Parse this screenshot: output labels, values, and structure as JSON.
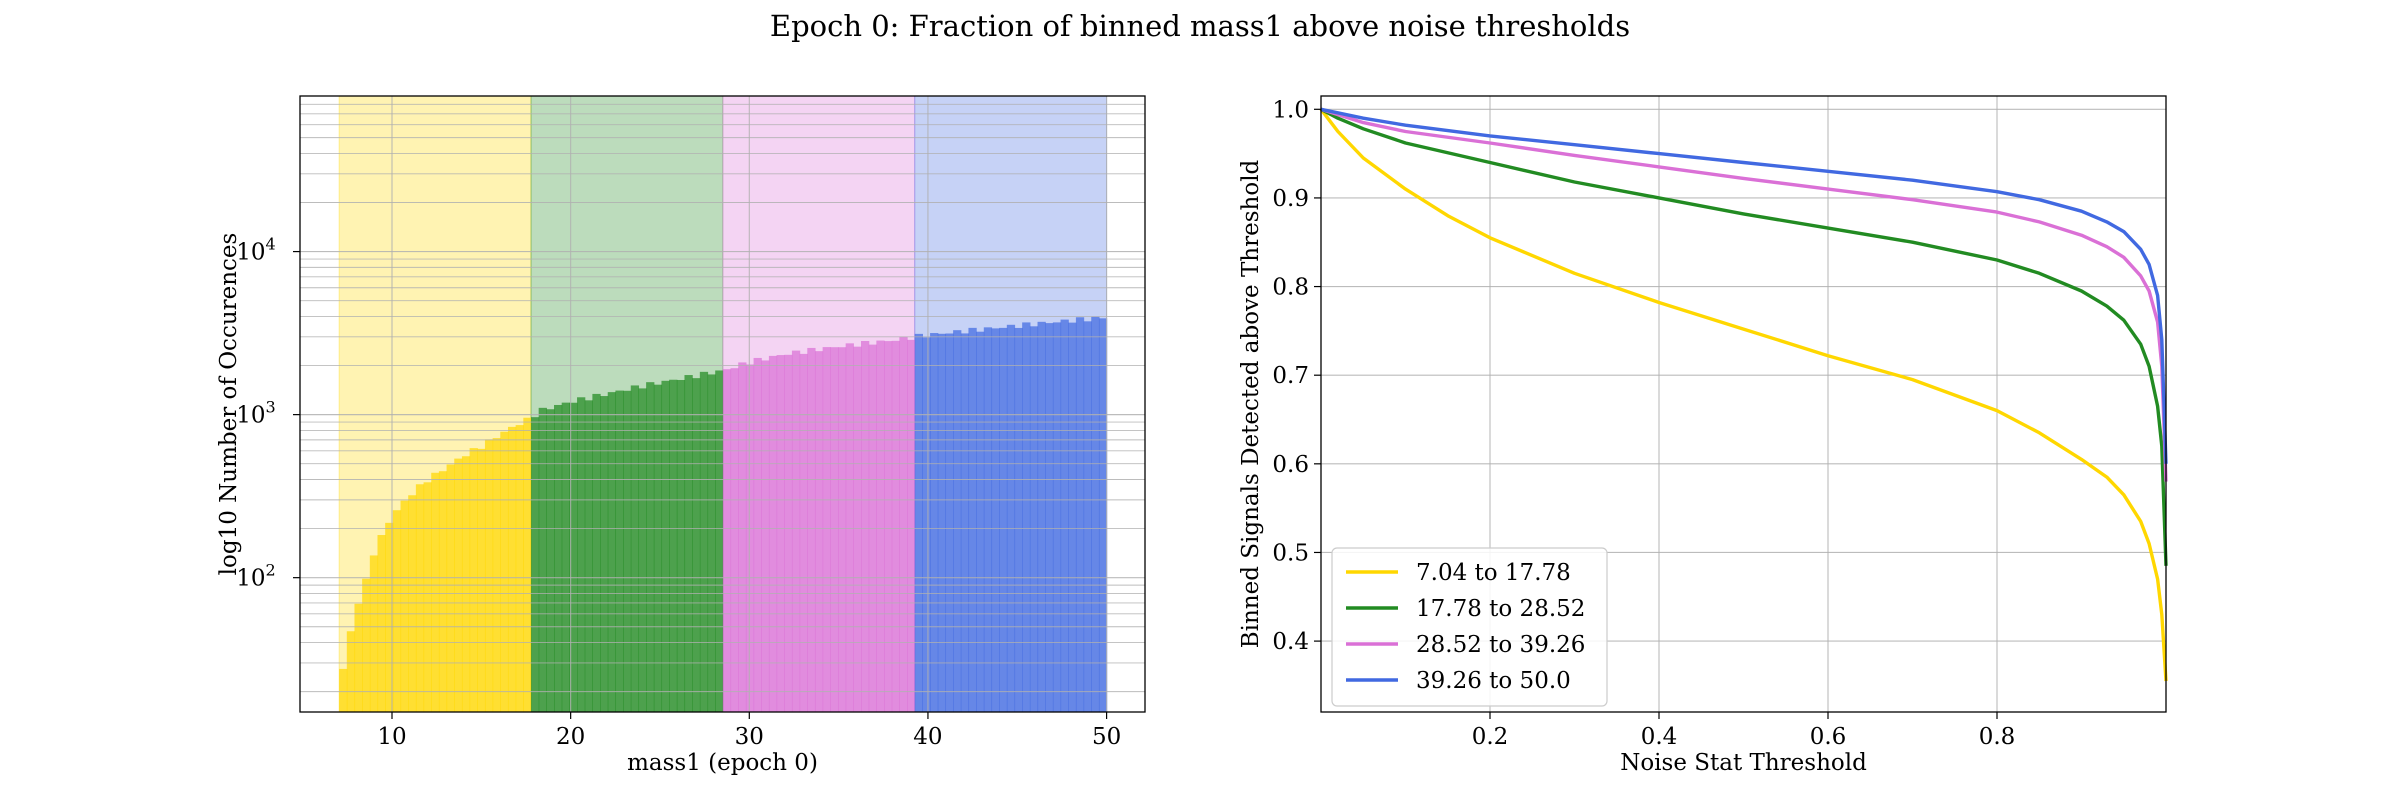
{
  "figure": {
    "suptitle": "Epoch 0: Fraction of binned mass1 above noise thresholds"
  },
  "chart_data": [
    {
      "type": "bar",
      "subtype": "histogram",
      "xlabel": "mass1 (epoch 0)",
      "ylabel": "log10 Number of Occurences",
      "xlim": [
        4.85,
        52.15
      ],
      "ylim": [
        15,
        90000
      ],
      "yscale": "log",
      "xticks": [
        10,
        20,
        30,
        40,
        50
      ],
      "yticks": [
        {
          "value": 100,
          "base": "10",
          "exp": "2"
        },
        {
          "value": 1000,
          "base": "10",
          "exp": "3"
        },
        {
          "value": 10000,
          "base": "10",
          "exp": "4"
        }
      ],
      "grid": true,
      "bin_range": [
        7.04,
        50.0
      ],
      "n_bins": 100,
      "envelope": [
        [
          7.04,
          20
        ],
        [
          7.47,
          38
        ],
        [
          7.9,
          58
        ],
        [
          8.5,
          95
        ],
        [
          9.0,
          145
        ],
        [
          10.0,
          240
        ],
        [
          11.0,
          320
        ],
        [
          12.0,
          400
        ],
        [
          13.0,
          470
        ],
        [
          14.0,
          560
        ],
        [
          15.0,
          640
        ],
        [
          16.0,
          750
        ],
        [
          17.0,
          870
        ],
        [
          17.78,
          950
        ],
        [
          18.2,
          1050
        ],
        [
          20.0,
          1200
        ],
        [
          22.0,
          1340
        ],
        [
          24.0,
          1500
        ],
        [
          26.0,
          1650
        ],
        [
          28.0,
          1820
        ],
        [
          28.52,
          1860
        ],
        [
          30.0,
          2100
        ],
        [
          32.0,
          2350
        ],
        [
          34.0,
          2530
        ],
        [
          36.0,
          2700
        ],
        [
          38.0,
          2850
        ],
        [
          39.26,
          3000
        ],
        [
          40.0,
          3080
        ],
        [
          42.0,
          3250
        ],
        [
          44.0,
          3420
        ],
        [
          46.0,
          3600
        ],
        [
          48.0,
          3780
        ],
        [
          50.0,
          3950
        ]
      ],
      "bands": [
        {
          "from": 7.04,
          "to": 17.78,
          "color": "#ffd700"
        },
        {
          "from": 17.78,
          "to": 28.52,
          "color": "#228b22"
        },
        {
          "from": 28.52,
          "to": 39.26,
          "color": "#da70d6"
        },
        {
          "from": 39.26,
          "to": 50.0,
          "color": "#4169e1"
        }
      ]
    },
    {
      "type": "line",
      "xlabel": "Noise Stat Threshold",
      "ylabel": "Binned Signals Detected above Threshold",
      "xlim": [
        0.0,
        1.0
      ],
      "ylim": [
        0.32,
        1.015
      ],
      "xticks": [
        0.2,
        0.4,
        0.6,
        0.8
      ],
      "yticks": [
        0.4,
        0.5,
        0.6,
        0.7,
        0.8,
        0.9,
        1.0
      ],
      "grid": true,
      "legend_position": "lower-left",
      "series": [
        {
          "name": "7.04 to 17.78",
          "color": "#ffd700",
          "x": [
            0,
            0.02,
            0.05,
            0.1,
            0.15,
            0.2,
            0.3,
            0.4,
            0.5,
            0.6,
            0.7,
            0.8,
            0.85,
            0.9,
            0.93,
            0.95,
            0.97,
            0.98,
            0.99,
            0.995,
            1.0
          ],
          "y": [
            1.0,
            0.975,
            0.945,
            0.91,
            0.88,
            0.855,
            0.815,
            0.782,
            0.752,
            0.722,
            0.695,
            0.66,
            0.635,
            0.605,
            0.585,
            0.565,
            0.535,
            0.51,
            0.47,
            0.43,
            0.355
          ]
        },
        {
          "name": "17.78 to 28.52",
          "color": "#228b22",
          "x": [
            0,
            0.02,
            0.05,
            0.1,
            0.2,
            0.3,
            0.4,
            0.5,
            0.6,
            0.7,
            0.8,
            0.85,
            0.9,
            0.93,
            0.95,
            0.97,
            0.98,
            0.99,
            0.995,
            1.0
          ],
          "y": [
            1.0,
            0.99,
            0.978,
            0.962,
            0.94,
            0.918,
            0.9,
            0.882,
            0.866,
            0.85,
            0.83,
            0.815,
            0.795,
            0.778,
            0.762,
            0.735,
            0.71,
            0.665,
            0.62,
            0.485
          ]
        },
        {
          "name": "28.52 to 39.26",
          "color": "#da70d6",
          "x": [
            0,
            0.05,
            0.1,
            0.2,
            0.3,
            0.4,
            0.5,
            0.6,
            0.7,
            0.8,
            0.85,
            0.9,
            0.93,
            0.95,
            0.97,
            0.98,
            0.99,
            0.995,
            1.0
          ],
          "y": [
            1.0,
            0.985,
            0.975,
            0.962,
            0.948,
            0.935,
            0.922,
            0.91,
            0.898,
            0.884,
            0.873,
            0.858,
            0.845,
            0.833,
            0.812,
            0.795,
            0.76,
            0.71,
            0.58
          ]
        },
        {
          "name": "39.26 to 50.0",
          "color": "#4169e1",
          "x": [
            0,
            0.05,
            0.1,
            0.2,
            0.3,
            0.4,
            0.5,
            0.6,
            0.7,
            0.8,
            0.85,
            0.9,
            0.93,
            0.95,
            0.97,
            0.98,
            0.99,
            0.995,
            1.0
          ],
          "y": [
            1.0,
            0.99,
            0.982,
            0.97,
            0.96,
            0.95,
            0.94,
            0.93,
            0.92,
            0.907,
            0.898,
            0.885,
            0.873,
            0.862,
            0.842,
            0.825,
            0.79,
            0.74,
            0.6
          ]
        }
      ]
    }
  ]
}
